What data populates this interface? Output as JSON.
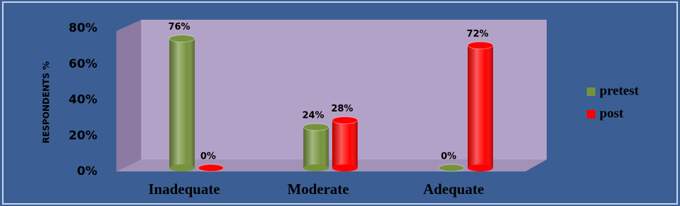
{
  "chart_data": {
    "type": "bar3d",
    "y_label": "RESPONDENTS %",
    "categories": [
      "Inadequate",
      "Moderate",
      "Adequate"
    ],
    "series": [
      {
        "name": "pretest",
        "color": "#76923c",
        "values": [
          76,
          24,
          0
        ],
        "value_labels": [
          "76%",
          "24%",
          "0%"
        ]
      },
      {
        "name": "post",
        "color": "#ff0000",
        "values": [
          0,
          28,
          72
        ],
        "value_labels": [
          "0%",
          "28%",
          "72%"
        ]
      }
    ],
    "ylim": [
      0,
      80
    ],
    "yticks": [
      {
        "value": 0,
        "label": "0%"
      },
      {
        "value": 20,
        "label": "20%"
      },
      {
        "value": 40,
        "label": "40%"
      },
      {
        "value": 60,
        "label": "60%"
      },
      {
        "value": 80,
        "label": "80%"
      }
    ],
    "legend": "right"
  }
}
